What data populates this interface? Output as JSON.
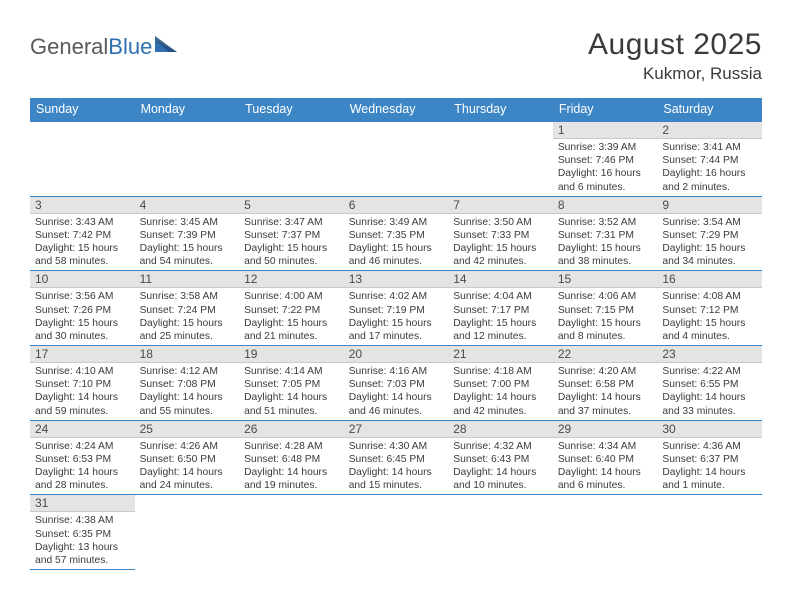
{
  "logo": {
    "part1": "General",
    "part2": "Blue"
  },
  "title": {
    "month": "August 2025",
    "location": "Kukmor, Russia"
  },
  "colors": {
    "header_bg": "#3d86c6",
    "header_fg": "#ffffff",
    "daynum_bg": "#e4e4e4",
    "rule": "#3d86c6",
    "text": "#3b3b3b",
    "logo_gray": "#5a5a5a",
    "logo_blue": "#2f6fb0"
  },
  "weekdays": [
    "Sunday",
    "Monday",
    "Tuesday",
    "Wednesday",
    "Thursday",
    "Friday",
    "Saturday"
  ],
  "weeks": [
    [
      null,
      null,
      null,
      null,
      null,
      {
        "d": "1",
        "sr": "3:39 AM",
        "ss": "7:46 PM",
        "dl": "16 hours and 6 minutes."
      },
      {
        "d": "2",
        "sr": "3:41 AM",
        "ss": "7:44 PM",
        "dl": "16 hours and 2 minutes."
      }
    ],
    [
      {
        "d": "3",
        "sr": "3:43 AM",
        "ss": "7:42 PM",
        "dl": "15 hours and 58 minutes."
      },
      {
        "d": "4",
        "sr": "3:45 AM",
        "ss": "7:39 PM",
        "dl": "15 hours and 54 minutes."
      },
      {
        "d": "5",
        "sr": "3:47 AM",
        "ss": "7:37 PM",
        "dl": "15 hours and 50 minutes."
      },
      {
        "d": "6",
        "sr": "3:49 AM",
        "ss": "7:35 PM",
        "dl": "15 hours and 46 minutes."
      },
      {
        "d": "7",
        "sr": "3:50 AM",
        "ss": "7:33 PM",
        "dl": "15 hours and 42 minutes."
      },
      {
        "d": "8",
        "sr": "3:52 AM",
        "ss": "7:31 PM",
        "dl": "15 hours and 38 minutes."
      },
      {
        "d": "9",
        "sr": "3:54 AM",
        "ss": "7:29 PM",
        "dl": "15 hours and 34 minutes."
      }
    ],
    [
      {
        "d": "10",
        "sr": "3:56 AM",
        "ss": "7:26 PM",
        "dl": "15 hours and 30 minutes."
      },
      {
        "d": "11",
        "sr": "3:58 AM",
        "ss": "7:24 PM",
        "dl": "15 hours and 25 minutes."
      },
      {
        "d": "12",
        "sr": "4:00 AM",
        "ss": "7:22 PM",
        "dl": "15 hours and 21 minutes."
      },
      {
        "d": "13",
        "sr": "4:02 AM",
        "ss": "7:19 PM",
        "dl": "15 hours and 17 minutes."
      },
      {
        "d": "14",
        "sr": "4:04 AM",
        "ss": "7:17 PM",
        "dl": "15 hours and 12 minutes."
      },
      {
        "d": "15",
        "sr": "4:06 AM",
        "ss": "7:15 PM",
        "dl": "15 hours and 8 minutes."
      },
      {
        "d": "16",
        "sr": "4:08 AM",
        "ss": "7:12 PM",
        "dl": "15 hours and 4 minutes."
      }
    ],
    [
      {
        "d": "17",
        "sr": "4:10 AM",
        "ss": "7:10 PM",
        "dl": "14 hours and 59 minutes."
      },
      {
        "d": "18",
        "sr": "4:12 AM",
        "ss": "7:08 PM",
        "dl": "14 hours and 55 minutes."
      },
      {
        "d": "19",
        "sr": "4:14 AM",
        "ss": "7:05 PM",
        "dl": "14 hours and 51 minutes."
      },
      {
        "d": "20",
        "sr": "4:16 AM",
        "ss": "7:03 PM",
        "dl": "14 hours and 46 minutes."
      },
      {
        "d": "21",
        "sr": "4:18 AM",
        "ss": "7:00 PM",
        "dl": "14 hours and 42 minutes."
      },
      {
        "d": "22",
        "sr": "4:20 AM",
        "ss": "6:58 PM",
        "dl": "14 hours and 37 minutes."
      },
      {
        "d": "23",
        "sr": "4:22 AM",
        "ss": "6:55 PM",
        "dl": "14 hours and 33 minutes."
      }
    ],
    [
      {
        "d": "24",
        "sr": "4:24 AM",
        "ss": "6:53 PM",
        "dl": "14 hours and 28 minutes."
      },
      {
        "d": "25",
        "sr": "4:26 AM",
        "ss": "6:50 PM",
        "dl": "14 hours and 24 minutes."
      },
      {
        "d": "26",
        "sr": "4:28 AM",
        "ss": "6:48 PM",
        "dl": "14 hours and 19 minutes."
      },
      {
        "d": "27",
        "sr": "4:30 AM",
        "ss": "6:45 PM",
        "dl": "14 hours and 15 minutes."
      },
      {
        "d": "28",
        "sr": "4:32 AM",
        "ss": "6:43 PM",
        "dl": "14 hours and 10 minutes."
      },
      {
        "d": "29",
        "sr": "4:34 AM",
        "ss": "6:40 PM",
        "dl": "14 hours and 6 minutes."
      },
      {
        "d": "30",
        "sr": "4:36 AM",
        "ss": "6:37 PM",
        "dl": "14 hours and 1 minute."
      }
    ],
    [
      {
        "d": "31",
        "sr": "4:38 AM",
        "ss": "6:35 PM",
        "dl": "13 hours and 57 minutes."
      },
      null,
      null,
      null,
      null,
      null,
      null
    ]
  ],
  "labels": {
    "sunrise": "Sunrise:",
    "sunset": "Sunset:",
    "daylight": "Daylight:"
  }
}
